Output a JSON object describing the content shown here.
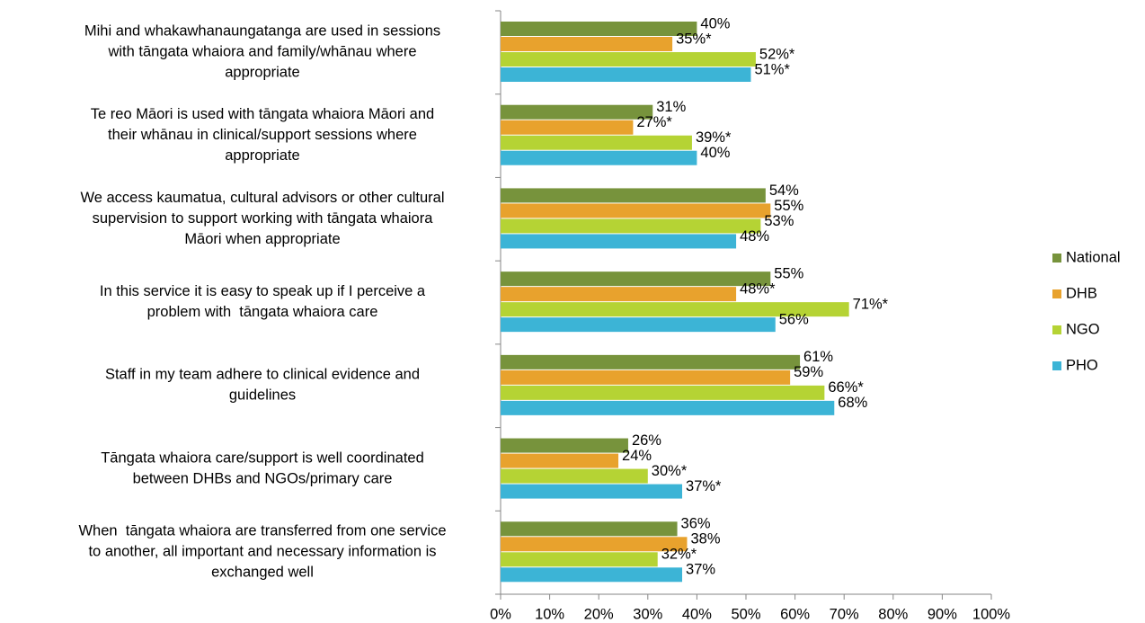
{
  "chart_data": {
    "type": "bar",
    "orientation": "horizontal",
    "categories": [
      "Mihi and whakawhanaungatanga are used in sessions\nwith tāngata whaiora and family/whānau where\nappropriate",
      "Te reo Māori is used with tāngata whaiora Māori and\ntheir whānau in clinical/support sessions where\nappropriate",
      "We access kaumatua, cultural advisors or other cultural\nsupervision to support working with tāngata whaiora\nMāori when appropriate",
      "In this service it is easy to speak up if I perceive a\nproblem with  tāngata whaiora care",
      "Staff in my team adhere to clinical evidence and\nguidelines",
      "Tāngata whaiora care/support is well coordinated\nbetween DHBs and NGOs/primary care",
      "When  tāngata whaiora are transferred from one service\nto another, all important and necessary information is\nexchanged well"
    ],
    "series": [
      {
        "name": "National",
        "color": "#77933c",
        "values": [
          40,
          31,
          54,
          55,
          61,
          26,
          36
        ],
        "value_labels": [
          "40%",
          "31%",
          "54%",
          "55%",
          "61%",
          "26%",
          "36%"
        ]
      },
      {
        "name": "DHB",
        "color": "#e8a22d",
        "values": [
          35,
          27,
          55,
          48,
          59,
          24,
          38
        ],
        "value_labels": [
          "35%*",
          "27%*",
          "55%",
          "48%*",
          "59%",
          "24%",
          "38%"
        ]
      },
      {
        "name": "NGO",
        "color": "#b5d334",
        "values": [
          52,
          39,
          53,
          71,
          66,
          30,
          32
        ],
        "value_labels": [
          "52%*",
          "39%*",
          "53%",
          "71%*",
          "66%*",
          "30%*",
          "32%*"
        ]
      },
      {
        "name": "PHO",
        "color": "#3cb4d6",
        "values": [
          51,
          40,
          48,
          56,
          68,
          37,
          37
        ],
        "value_labels": [
          "51%*",
          "40%",
          "48%",
          "56%",
          "68%",
          "37%*",
          "37%"
        ]
      }
    ],
    "xlim": [
      0,
      100
    ],
    "xticks": [
      {
        "value": 0,
        "label": "0%"
      },
      {
        "value": 10,
        "label": "10%"
      },
      {
        "value": 20,
        "label": "20%"
      },
      {
        "value": 30,
        "label": "30%"
      },
      {
        "value": 40,
        "label": "40%"
      },
      {
        "value": 50,
        "label": "50%"
      },
      {
        "value": 60,
        "label": "60%"
      },
      {
        "value": 70,
        "label": "70%"
      },
      {
        "value": 80,
        "label": "80%"
      },
      {
        "value": 90,
        "label": "90%"
      },
      {
        "value": 100,
        "label": "100%"
      }
    ],
    "legend": "right"
  }
}
